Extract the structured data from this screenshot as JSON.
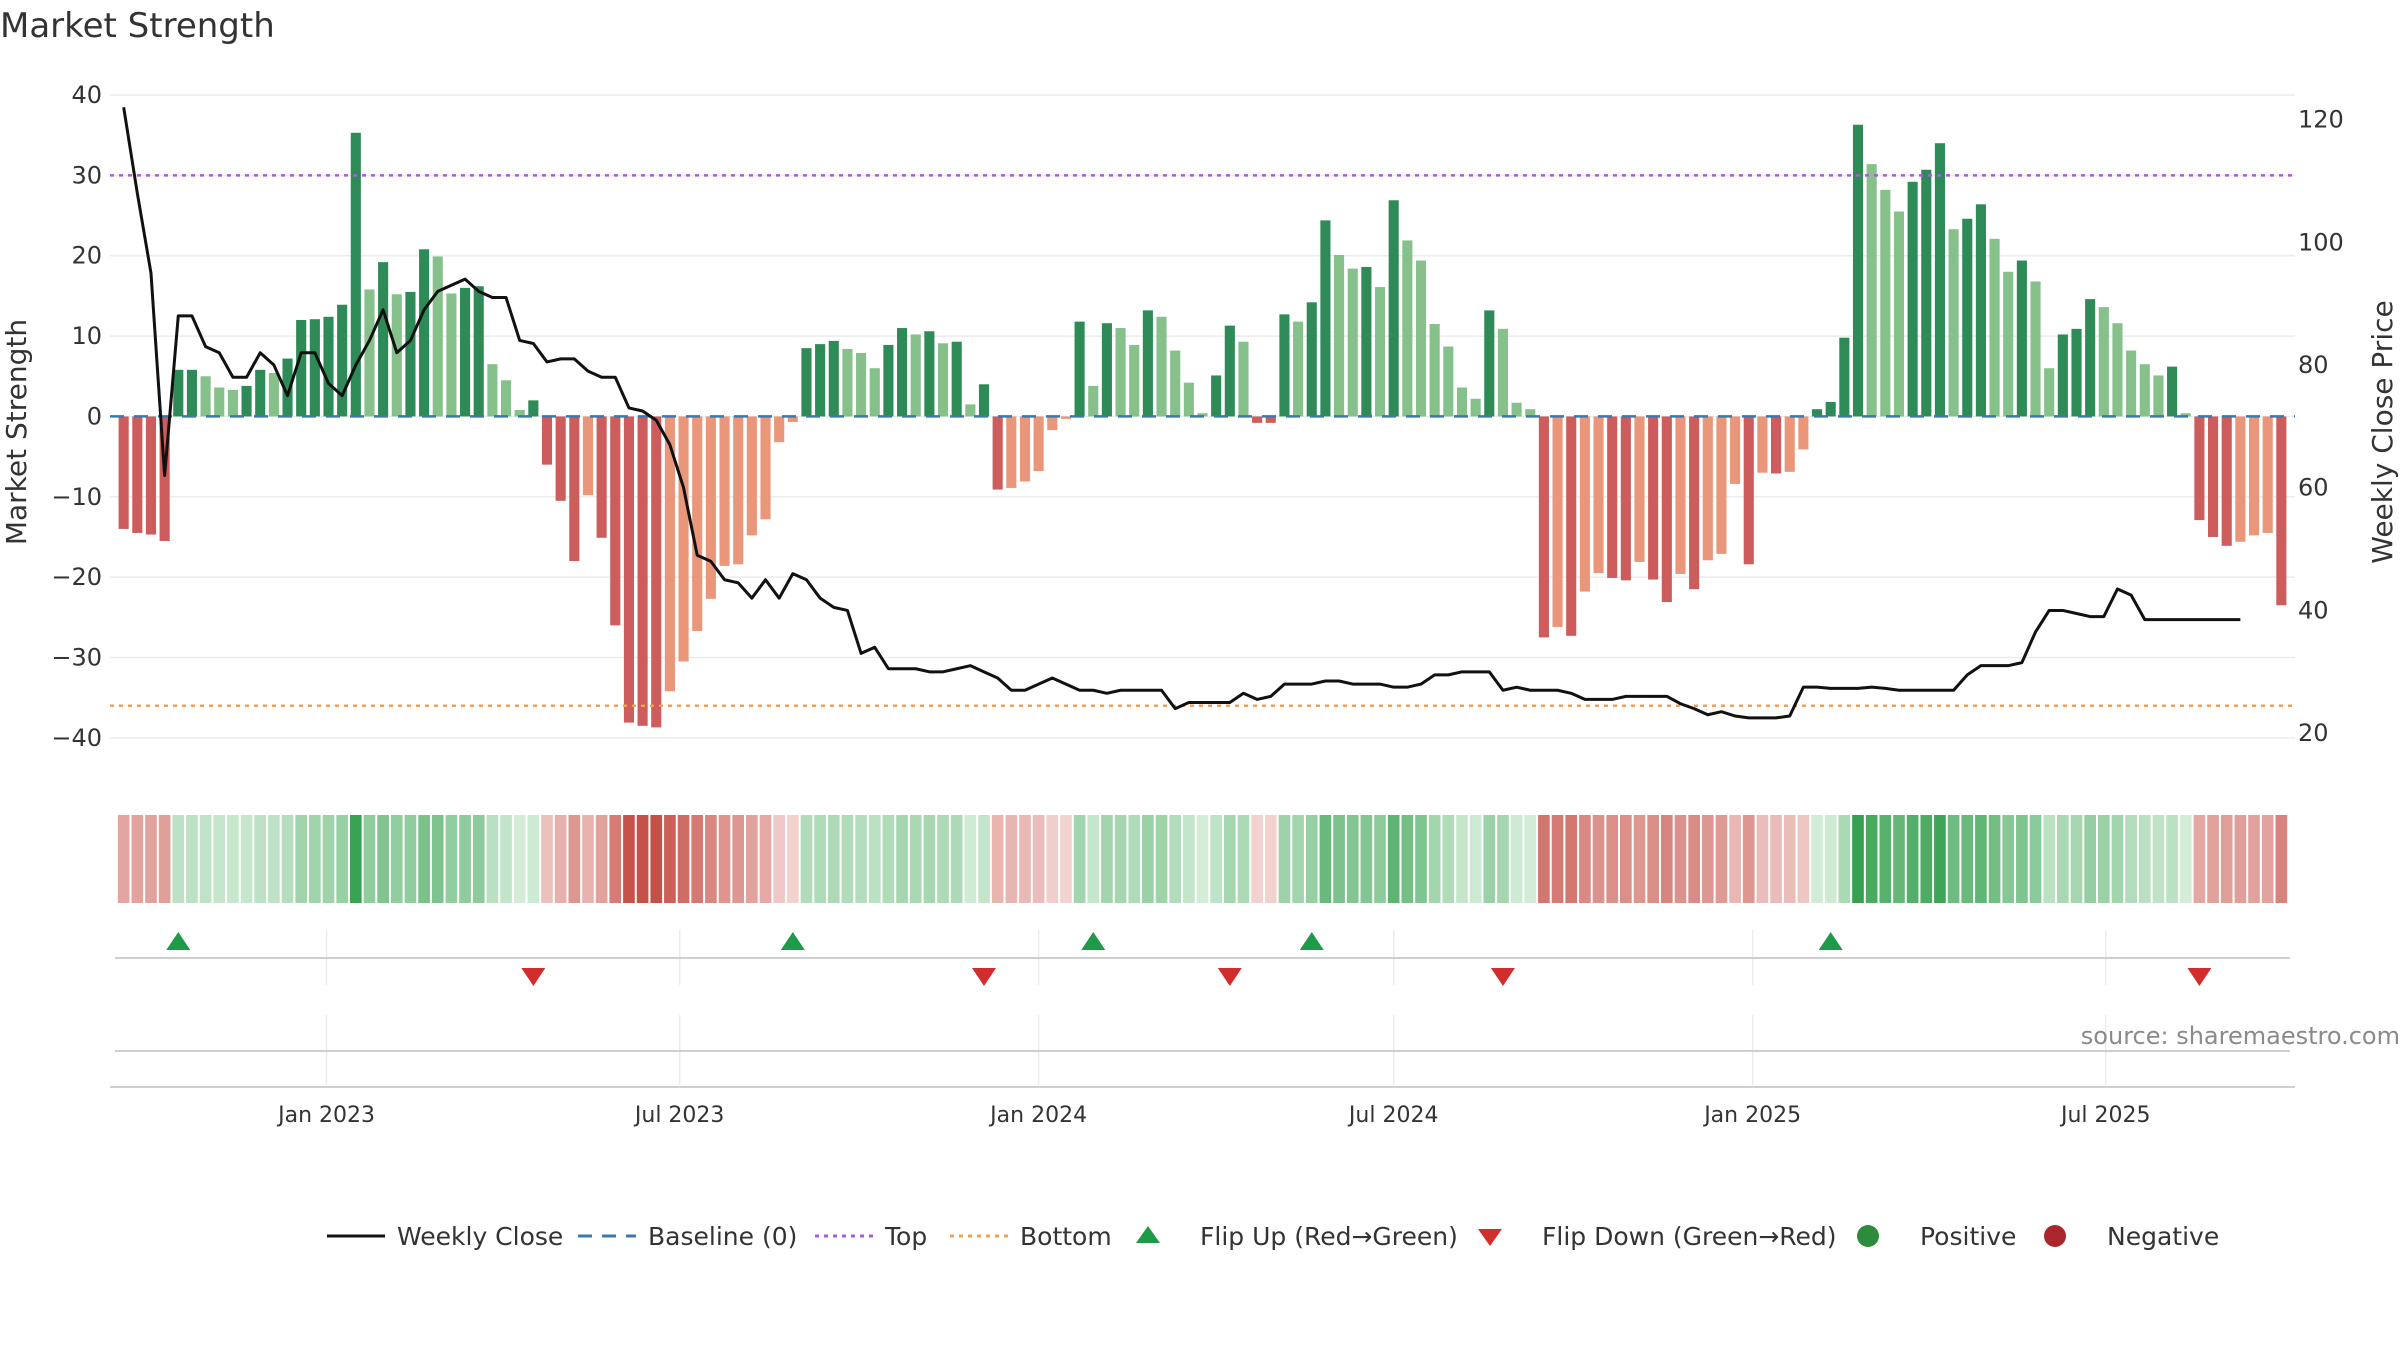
{
  "title": "Market Strength",
  "source": "source: sharemaestro.com",
  "chart_data": {
    "type": "bar",
    "title": "Market Strength",
    "ylabel": "Market Strength",
    "y2label": "Weekly Close Price",
    "ylim": [
      -44,
      40
    ],
    "y2lim": [
      14,
      124
    ],
    "yticks": [
      40,
      30,
      20,
      10,
      0,
      -10,
      -20,
      -30,
      -40
    ],
    "y2ticks": [
      120,
      100,
      80,
      60,
      40,
      20
    ],
    "x_range": [
      "2022-09-12",
      "2025-10-06"
    ],
    "xticks": [
      {
        "date": "2023-01-01",
        "label": "Jan 2023"
      },
      {
        "date": "2023-07-01",
        "label": "Jul 2023"
      },
      {
        "date": "2024-01-01",
        "label": "Jan 2024"
      },
      {
        "date": "2024-07-01",
        "label": "Jul 2024"
      },
      {
        "date": "2025-01-01",
        "label": "Jan 2025"
      },
      {
        "date": "2025-07-01",
        "label": "Jul 2025"
      }
    ],
    "start_week": "2022-09-19",
    "grid": true,
    "legend_position": "bottom",
    "top_level": 30,
    "bottom_level": -36,
    "baseline": 0,
    "strength": [
      -14,
      -14.5,
      -14.7,
      -15.5,
      5.8,
      5.8,
      5,
      3.6,
      3.3,
      3.8,
      5.8,
      5.4,
      7.2,
      12,
      12.1,
      12.4,
      13.9,
      35.3,
      15.8,
      19.2,
      15.2,
      15.5,
      20.8,
      19.9,
      15.3,
      16,
      16.2,
      6.5,
      4.5,
      0.8,
      2,
      -6,
      -10.5,
      -18,
      -9.8,
      -15.1,
      -26,
      -38.1,
      -38.5,
      -38.7,
      -34.2,
      -30.5,
      -26.7,
      -22.7,
      -18.6,
      -18.4,
      -14.8,
      -12.8,
      -3.2,
      -0.7,
      8.5,
      9,
      9.4,
      8.4,
      7.9,
      6,
      8.9,
      11,
      10.2,
      10.6,
      9.1,
      9.3,
      1.5,
      4,
      -9.1,
      -8.9,
      -8.1,
      -6.8,
      -1.7,
      -0.3,
      11.8,
      3.8,
      11.6,
      11,
      8.9,
      13.2,
      12.4,
      8.2,
      4.2,
      0.4,
      5.1,
      11.3,
      9.3,
      -0.8,
      -0.8,
      12.7,
      11.8,
      14.2,
      24.4,
      20.1,
      18.4,
      18.6,
      16.1,
      26.9,
      21.9,
      19.4,
      11.5,
      8.7,
      3.6,
      2.2,
      13.2,
      10.9,
      1.7,
      0.9,
      -27.5,
      -26.2,
      -27.3,
      -21.8,
      -19.5,
      -20.1,
      -20.4,
      -18.1,
      -20.3,
      -23.1,
      -19.6,
      -21.5,
      -17.9,
      -17.1,
      -8.4,
      -18.4,
      -7,
      -7.1,
      -6.9,
      -4.1,
      0.9,
      1.8,
      9.8,
      36.3,
      31.4,
      28.2,
      25.5,
      29.2,
      30.7,
      34,
      23.3,
      24.6,
      26.4,
      22.1,
      18,
      19.4,
      16.8,
      6,
      10.2,
      10.9,
      14.6,
      13.6,
      11.6,
      8.2,
      6.5,
      5.1,
      6.2,
      0.4,
      -12.9,
      -15,
      -16.1,
      -15.6,
      -14.8,
      -14.5,
      -23.5
    ],
    "close": [
      122,
      108,
      95,
      62,
      88,
      88,
      83,
      82,
      78,
      78,
      82,
      80,
      75,
      82,
      82,
      77,
      75,
      80,
      84,
      89,
      82,
      84,
      89,
      92,
      93,
      94,
      92,
      91,
      91,
      84,
      83.5,
      80.5,
      81,
      81,
      79,
      78,
      78,
      73,
      72.5,
      71,
      67,
      60,
      49,
      48,
      45,
      44.5,
      42,
      45,
      42,
      46,
      45,
      42,
      40.5,
      40,
      33,
      34,
      30.5,
      30.5,
      30.5,
      30,
      30,
      30.5,
      31,
      30,
      29,
      27,
      27,
      28,
      29,
      28,
      27,
      27,
      26.5,
      27,
      27,
      27,
      27,
      24,
      25,
      25,
      25,
      25,
      26.5,
      25.5,
      26,
      28,
      28,
      28,
      28.5,
      28.5,
      28,
      28,
      28,
      27.5,
      27.5,
      28,
      29.5,
      29.5,
      30,
      30,
      30,
      27,
      27.5,
      27,
      27,
      27,
      26.5,
      25.5,
      25.5,
      25.5,
      26,
      26,
      26,
      26,
      24.8,
      24,
      23,
      23.5,
      22.8,
      22.5,
      22.5,
      22.5,
      22.8,
      27.5,
      27.5,
      27.3,
      27.3,
      27.3,
      27.5,
      27.3,
      27,
      27,
      27,
      27,
      27,
      29.5,
      31,
      31,
      31,
      31.5,
      36.5,
      40,
      40,
      39.5,
      39,
      39,
      43.5,
      42.5,
      38.5,
      38.5,
      38.5,
      38.5,
      38.5,
      38.5,
      38.5,
      38.5
    ],
    "flip_up": [
      "2022-10-17",
      "2023-08-28",
      "2024-01-29",
      "2024-05-20",
      "2025-02-10"
    ],
    "flip_down": [
      "2023-04-17",
      "2023-12-04",
      "2024-04-08",
      "2024-08-26",
      "2025-08-18"
    ],
    "series": [
      {
        "name": "Weekly Close",
        "color": "#111111",
        "style": "solid"
      },
      {
        "name": "Baseline (0)",
        "color": "#3a78b0",
        "style": "dashed"
      },
      {
        "name": "Top",
        "color": "#a55fd6",
        "style": "dotted"
      },
      {
        "name": "Bottom",
        "color": "#eea15a",
        "style": "dotted"
      },
      {
        "name": "Flip Up (Red→Green)",
        "color": "#1e9a48",
        "marker": "triangle-up"
      },
      {
        "name": "Flip Down (Green→Red)",
        "color": "#d22d2d",
        "marker": "triangle-down"
      },
      {
        "name": "Positive",
        "color": "#2f8b3c",
        "marker": "circle"
      },
      {
        "name": "Negative",
        "color": "#a9272c",
        "marker": "circle"
      }
    ]
  }
}
